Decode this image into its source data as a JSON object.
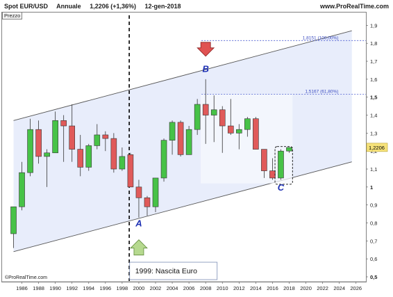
{
  "header": {
    "symbol": "Spot EUR/USD",
    "timeframe": "Annuale",
    "last": "1,2206 (+1,36%)",
    "date": "12-gen-2018",
    "site": "www.ProRealTime.com"
  },
  "panel_label": "Prezzo",
  "copyright": "©ProRealTime.com",
  "annotation": "1999: Nascita Euro",
  "price_label": "1,2206",
  "chart_data": {
    "type": "candlestick",
    "x_ticks": [
      "1986",
      "1988",
      "1990",
      "1992",
      "1994",
      "1996",
      "1998",
      "2000",
      "2002",
      "2004",
      "2006",
      "2008",
      "2010",
      "2012",
      "2014",
      "2016",
      "2018",
      "2020",
      "2022",
      "2024",
      "2026"
    ],
    "y_ticks": [
      "0,5",
      "0,6",
      "0,7",
      "0,8",
      "0,9",
      "1",
      "1,1",
      "1,2",
      "1,3",
      "1,4",
      "1,5",
      "1,6",
      "1,7",
      "1,8",
      "1,9"
    ],
    "xlim": [
      1985,
      2027
    ],
    "ylim": [
      0.48,
      1.93
    ],
    "candles": [
      {
        "year": 1985,
        "open": 0.74,
        "high": 0.89,
        "low": 0.66,
        "close": 0.89
      },
      {
        "year": 1986,
        "open": 0.89,
        "high": 1.14,
        "low": 0.87,
        "close": 1.08
      },
      {
        "year": 1987,
        "open": 1.08,
        "high": 1.38,
        "low": 1.06,
        "close": 1.32
      },
      {
        "year": 1988,
        "open": 1.32,
        "high": 1.37,
        "low": 1.13,
        "close": 1.17
      },
      {
        "year": 1989,
        "open": 1.17,
        "high": 1.21,
        "low": 1.0,
        "close": 1.19
      },
      {
        "year": 1990,
        "open": 1.19,
        "high": 1.42,
        "low": 1.19,
        "close": 1.37
      },
      {
        "year": 1991,
        "open": 1.37,
        "high": 1.4,
        "low": 1.14,
        "close": 1.34
      },
      {
        "year": 1992,
        "open": 1.34,
        "high": 1.46,
        "low": 1.14,
        "close": 1.21
      },
      {
        "year": 1993,
        "open": 1.21,
        "high": 1.29,
        "low": 1.06,
        "close": 1.11
      },
      {
        "year": 1994,
        "open": 1.11,
        "high": 1.24,
        "low": 1.09,
        "close": 1.23
      },
      {
        "year": 1995,
        "open": 1.23,
        "high": 1.35,
        "low": 1.21,
        "close": 1.29
      },
      {
        "year": 1996,
        "open": 1.29,
        "high": 1.31,
        "low": 1.2,
        "close": 1.27
      },
      {
        "year": 1997,
        "open": 1.27,
        "high": 1.3,
        "low": 1.08,
        "close": 1.1
      },
      {
        "year": 1998,
        "open": 1.1,
        "high": 1.22,
        "low": 1.09,
        "close": 1.17
      },
      {
        "year": 1999,
        "open": 1.18,
        "high": 1.19,
        "low": 1.0,
        "close": 1.0
      },
      {
        "year": 2000,
        "open": 1.0,
        "high": 1.04,
        "low": 0.83,
        "close": 0.94
      },
      {
        "year": 2001,
        "open": 0.94,
        "high": 0.95,
        "low": 0.84,
        "close": 0.89
      },
      {
        "year": 2002,
        "open": 0.89,
        "high": 1.05,
        "low": 0.86,
        "close": 1.05
      },
      {
        "year": 2003,
        "open": 1.05,
        "high": 1.27,
        "low": 1.03,
        "close": 1.26
      },
      {
        "year": 2004,
        "open": 1.26,
        "high": 1.37,
        "low": 1.18,
        "close": 1.36
      },
      {
        "year": 2005,
        "open": 1.36,
        "high": 1.37,
        "low": 1.17,
        "close": 1.18
      },
      {
        "year": 2006,
        "open": 1.18,
        "high": 1.34,
        "low": 1.18,
        "close": 1.32
      },
      {
        "year": 2007,
        "open": 1.32,
        "high": 1.49,
        "low": 1.29,
        "close": 1.46
      },
      {
        "year": 2008,
        "open": 1.46,
        "high": 1.6,
        "low": 1.24,
        "close": 1.4
      },
      {
        "year": 2009,
        "open": 1.4,
        "high": 1.51,
        "low": 1.25,
        "close": 1.43
      },
      {
        "year": 2010,
        "open": 1.43,
        "high": 1.45,
        "low": 1.19,
        "close": 1.34
      },
      {
        "year": 2011,
        "open": 1.34,
        "high": 1.49,
        "low": 1.29,
        "close": 1.3
      },
      {
        "year": 2012,
        "open": 1.3,
        "high": 1.35,
        "low": 1.21,
        "close": 1.32
      },
      {
        "year": 2013,
        "open": 1.32,
        "high": 1.39,
        "low": 1.28,
        "close": 1.38
      },
      {
        "year": 2014,
        "open": 1.38,
        "high": 1.39,
        "low": 1.21,
        "close": 1.21
      },
      {
        "year": 2015,
        "open": 1.21,
        "high": 1.21,
        "low": 1.05,
        "close": 1.09
      },
      {
        "year": 2016,
        "open": 1.09,
        "high": 1.16,
        "low": 1.04,
        "close": 1.05
      },
      {
        "year": 2017,
        "open": 1.05,
        "high": 1.21,
        "low": 1.04,
        "close": 1.2
      },
      {
        "year": 2018,
        "open": 1.2,
        "high": 1.22,
        "low": 1.19,
        "close": 1.22
      }
    ],
    "fib_levels": [
      {
        "label": "1,8151 (100,00%)",
        "value": 1.8151
      },
      {
        "label": "1,5167 (61,80%)",
        "value": 1.5167
      }
    ],
    "channel": {
      "upper": [
        [
          1985,
          1.37
        ],
        [
          2025.5,
          1.87
        ]
      ],
      "lower": [
        [
          1985,
          0.64
        ],
        [
          2025.5,
          1.14
        ]
      ]
    },
    "wave_labels": [
      {
        "text": "A",
        "year": 2000,
        "value": 0.78
      },
      {
        "text": "B",
        "year": 2008,
        "value": 1.64
      },
      {
        "text": "C",
        "year": 2017,
        "value": 0.98
      }
    ],
    "up_color": "#47c247",
    "down_color": "#e05a5a"
  }
}
